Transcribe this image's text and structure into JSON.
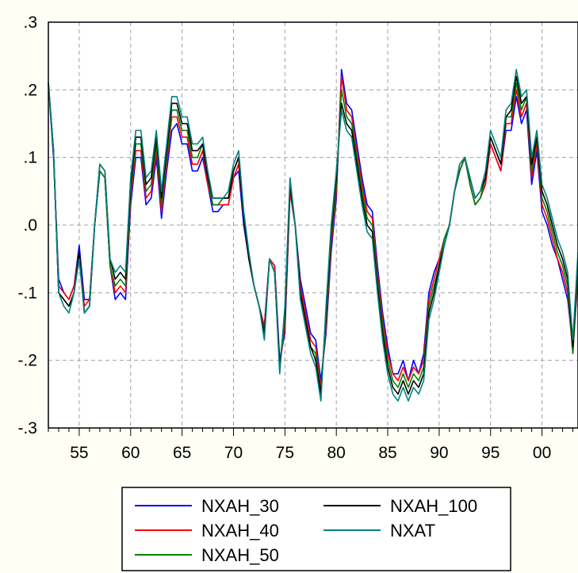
{
  "chart_data": {
    "type": "line",
    "title": "",
    "xlabel": "",
    "ylabel": "",
    "xlim": [
      1952,
      2003.5
    ],
    "ylim": [
      -0.3,
      0.3
    ],
    "grid": true,
    "legend_position": "bottom",
    "x_ticks": [
      {
        "value": 1955,
        "label": "55"
      },
      {
        "value": 1960,
        "label": "60"
      },
      {
        "value": 1965,
        "label": "65"
      },
      {
        "value": 1970,
        "label": "70"
      },
      {
        "value": 1975,
        "label": "75"
      },
      {
        "value": 1980,
        "label": "80"
      },
      {
        "value": 1985,
        "label": "85"
      },
      {
        "value": 1990,
        "label": "90"
      },
      {
        "value": 1995,
        "label": "95"
      },
      {
        "value": 2000,
        "label": "00"
      }
    ],
    "y_ticks": [
      {
        "value": 0.3,
        "label": ".3"
      },
      {
        "value": 0.2,
        "label": ".2"
      },
      {
        "value": 0.1,
        "label": ".1"
      },
      {
        "value": 0.0,
        "label": ".0"
      },
      {
        "value": -0.1,
        "label": "-.1"
      },
      {
        "value": -0.2,
        "label": "-.2"
      },
      {
        "value": -0.3,
        "label": "-.3"
      }
    ],
    "x": [
      1952.0,
      1952.5,
      1953.0,
      1953.5,
      1954.0,
      1954.5,
      1955.0,
      1955.5,
      1956.0,
      1956.5,
      1957.0,
      1957.5,
      1958.0,
      1958.5,
      1959.0,
      1959.5,
      1960.0,
      1960.5,
      1961.0,
      1961.5,
      1962.0,
      1962.5,
      1963.0,
      1963.5,
      1964.0,
      1964.5,
      1965.0,
      1965.5,
      1966.0,
      1966.5,
      1967.0,
      1967.5,
      1968.0,
      1968.5,
      1969.0,
      1969.5,
      1970.0,
      1970.5,
      1971.0,
      1971.5,
      1972.0,
      1972.5,
      1973.0,
      1973.5,
      1974.0,
      1974.5,
      1975.0,
      1975.5,
      1976.0,
      1976.5,
      1977.0,
      1977.5,
      1978.0,
      1978.5,
      1979.0,
      1979.5,
      1980.0,
      1980.5,
      1981.0,
      1981.5,
      1982.0,
      1982.5,
      1983.0,
      1983.5,
      1984.0,
      1984.5,
      1985.0,
      1985.5,
      1986.0,
      1986.5,
      1987.0,
      1987.5,
      1988.0,
      1988.5,
      1989.0,
      1989.5,
      1990.0,
      1990.5,
      1991.0,
      1991.5,
      1992.0,
      1992.5,
      1993.0,
      1993.5,
      1994.0,
      1994.5,
      1995.0,
      1995.5,
      1996.0,
      1996.5,
      1997.0,
      1997.5,
      1998.0,
      1998.5,
      1999.0,
      1999.5,
      2000.0,
      2000.5,
      2001.0,
      2001.5,
      2002.0,
      2002.5,
      2003.0,
      2003.5
    ],
    "series": [
      {
        "name": "NXAH_30",
        "color": "#0000ff",
        "values": [
          0.21,
          0.1,
          -0.08,
          -0.1,
          -0.11,
          -0.09,
          -0.03,
          -0.11,
          -0.11,
          0.0,
          0.08,
          0.07,
          -0.06,
          -0.11,
          -0.1,
          -0.11,
          0.03,
          0.1,
          0.1,
          0.03,
          0.04,
          0.1,
          0.01,
          0.08,
          0.14,
          0.15,
          0.12,
          0.12,
          0.08,
          0.08,
          0.1,
          0.06,
          0.02,
          0.02,
          0.03,
          0.03,
          0.07,
          0.08,
          0.0,
          -0.05,
          -0.09,
          -0.12,
          -0.15,
          -0.05,
          -0.06,
          -0.2,
          -0.16,
          0.05,
          0.0,
          -0.08,
          -0.12,
          -0.16,
          -0.17,
          -0.23,
          -0.16,
          -0.04,
          0.04,
          0.23,
          0.18,
          0.17,
          0.12,
          0.07,
          0.03,
          0.02,
          -0.06,
          -0.13,
          -0.18,
          -0.22,
          -0.22,
          -0.2,
          -0.23,
          -0.2,
          -0.22,
          -0.19,
          -0.1,
          -0.07,
          -0.05,
          -0.02,
          0.0,
          0.05,
          0.08,
          0.1,
          0.06,
          0.03,
          0.04,
          0.06,
          0.12,
          0.1,
          0.08,
          0.14,
          0.14,
          0.19,
          0.15,
          0.17,
          0.06,
          0.11,
          0.02,
          0.0,
          -0.03,
          -0.05,
          -0.08,
          -0.11,
          -0.18,
          -0.08
        ]
      },
      {
        "name": "NXAH_40",
        "color": "#ff0000",
        "values": [
          0.21,
          0.11,
          -0.09,
          -0.1,
          -0.11,
          -0.09,
          -0.04,
          -0.12,
          -0.11,
          0.0,
          0.08,
          0.07,
          -0.06,
          -0.1,
          -0.09,
          -0.1,
          0.04,
          0.11,
          0.11,
          0.04,
          0.05,
          0.11,
          0.02,
          0.09,
          0.16,
          0.16,
          0.13,
          0.13,
          0.09,
          0.09,
          0.11,
          0.06,
          0.03,
          0.03,
          0.03,
          0.03,
          0.07,
          0.09,
          0.01,
          -0.05,
          -0.09,
          -0.12,
          -0.15,
          -0.05,
          -0.06,
          -0.21,
          -0.15,
          0.05,
          0.0,
          -0.09,
          -0.13,
          -0.17,
          -0.18,
          -0.24,
          -0.15,
          -0.03,
          0.05,
          0.22,
          0.17,
          0.16,
          0.11,
          0.06,
          0.02,
          0.01,
          -0.07,
          -0.14,
          -0.19,
          -0.22,
          -0.23,
          -0.21,
          -0.23,
          -0.21,
          -0.22,
          -0.2,
          -0.11,
          -0.08,
          -0.05,
          -0.02,
          0.0,
          0.05,
          0.08,
          0.1,
          0.06,
          0.03,
          0.04,
          0.06,
          0.12,
          0.1,
          0.08,
          0.15,
          0.15,
          0.2,
          0.16,
          0.18,
          0.07,
          0.12,
          0.03,
          0.01,
          -0.02,
          -0.05,
          -0.07,
          -0.1,
          -0.19,
          -0.07
        ]
      },
      {
        "name": "NXAH_50",
        "color": "#008000",
        "values": [
          0.21,
          0.11,
          -0.1,
          -0.11,
          -0.12,
          -0.1,
          -0.04,
          -0.13,
          -0.12,
          0.0,
          0.08,
          0.07,
          -0.06,
          -0.09,
          -0.08,
          -0.09,
          0.05,
          0.12,
          0.12,
          0.05,
          0.06,
          0.12,
          0.03,
          0.1,
          0.17,
          0.17,
          0.14,
          0.14,
          0.1,
          0.1,
          0.12,
          0.07,
          0.03,
          0.03,
          0.04,
          0.04,
          0.08,
          0.1,
          0.01,
          -0.05,
          -0.09,
          -0.12,
          -0.16,
          -0.05,
          -0.07,
          -0.21,
          -0.14,
          0.06,
          0.0,
          -0.1,
          -0.14,
          -0.18,
          -0.19,
          -0.25,
          -0.14,
          -0.02,
          0.06,
          0.2,
          0.16,
          0.15,
          0.1,
          0.05,
          0.01,
          0.0,
          -0.08,
          -0.15,
          -0.2,
          -0.23,
          -0.24,
          -0.22,
          -0.24,
          -0.22,
          -0.23,
          -0.21,
          -0.12,
          -0.09,
          -0.06,
          -0.02,
          0.0,
          0.05,
          0.08,
          0.1,
          0.06,
          0.03,
          0.04,
          0.07,
          0.13,
          0.11,
          0.09,
          0.16,
          0.16,
          0.21,
          0.17,
          0.19,
          0.08,
          0.13,
          0.04,
          0.02,
          -0.01,
          -0.04,
          -0.06,
          -0.09,
          -0.19,
          -0.06
        ]
      },
      {
        "name": "NXAH_100",
        "color": "#000000",
        "values": [
          0.21,
          0.11,
          -0.1,
          -0.11,
          -0.12,
          -0.1,
          -0.04,
          -0.13,
          -0.12,
          0.0,
          0.09,
          0.08,
          -0.05,
          -0.08,
          -0.07,
          -0.08,
          0.06,
          0.13,
          0.13,
          0.06,
          0.07,
          0.13,
          0.04,
          0.11,
          0.18,
          0.18,
          0.15,
          0.15,
          0.11,
          0.11,
          0.12,
          0.07,
          0.04,
          0.04,
          0.04,
          0.04,
          0.08,
          0.1,
          0.01,
          -0.05,
          -0.09,
          -0.12,
          -0.16,
          -0.05,
          -0.07,
          -0.21,
          -0.13,
          0.06,
          0.0,
          -0.1,
          -0.14,
          -0.18,
          -0.2,
          -0.25,
          -0.13,
          -0.01,
          0.07,
          0.18,
          0.15,
          0.14,
          0.09,
          0.04,
          0.0,
          -0.01,
          -0.09,
          -0.16,
          -0.21,
          -0.24,
          -0.25,
          -0.23,
          -0.25,
          -0.23,
          -0.24,
          -0.22,
          -0.13,
          -0.1,
          -0.06,
          -0.03,
          0.0,
          0.05,
          0.09,
          0.1,
          0.07,
          0.04,
          0.05,
          0.07,
          0.13,
          0.11,
          0.09,
          0.16,
          0.17,
          0.22,
          0.18,
          0.19,
          0.09,
          0.13,
          0.05,
          0.03,
          0.0,
          -0.03,
          -0.05,
          -0.08,
          -0.18,
          -0.05
        ]
      },
      {
        "name": "NXAT",
        "color": "#008080",
        "values": [
          0.21,
          0.11,
          -0.1,
          -0.12,
          -0.13,
          -0.1,
          -0.05,
          -0.13,
          -0.12,
          0.0,
          0.09,
          0.08,
          -0.05,
          -0.07,
          -0.06,
          -0.07,
          0.07,
          0.14,
          0.14,
          0.07,
          0.08,
          0.14,
          0.05,
          0.12,
          0.19,
          0.19,
          0.16,
          0.16,
          0.12,
          0.12,
          0.13,
          0.08,
          0.04,
          0.04,
          0.04,
          0.05,
          0.09,
          0.11,
          0.02,
          -0.04,
          -0.09,
          -0.12,
          -0.17,
          -0.05,
          -0.07,
          -0.22,
          -0.12,
          0.07,
          0.0,
          -0.11,
          -0.15,
          -0.19,
          -0.21,
          -0.26,
          -0.12,
          0.0,
          0.08,
          0.17,
          0.14,
          0.13,
          0.08,
          0.03,
          -0.01,
          -0.02,
          -0.1,
          -0.17,
          -0.22,
          -0.25,
          -0.26,
          -0.24,
          -0.26,
          -0.24,
          -0.25,
          -0.23,
          -0.14,
          -0.11,
          -0.07,
          -0.03,
          0.0,
          0.05,
          0.09,
          0.1,
          0.07,
          0.04,
          0.05,
          0.08,
          0.14,
          0.12,
          0.1,
          0.17,
          0.18,
          0.23,
          0.19,
          0.2,
          0.1,
          0.14,
          0.06,
          0.04,
          0.01,
          -0.02,
          -0.04,
          -0.07,
          -0.17,
          -0.04
        ]
      }
    ]
  },
  "legend": {
    "items": [
      {
        "label": "NXAH_30",
        "color": "#0000ff"
      },
      {
        "label": "NXAH_40",
        "color": "#ff0000"
      },
      {
        "label": "NXAH_50",
        "color": "#008000"
      },
      {
        "label": "NXAH_100",
        "color": "#000000"
      },
      {
        "label": "NXAT",
        "color": "#008080"
      }
    ]
  }
}
